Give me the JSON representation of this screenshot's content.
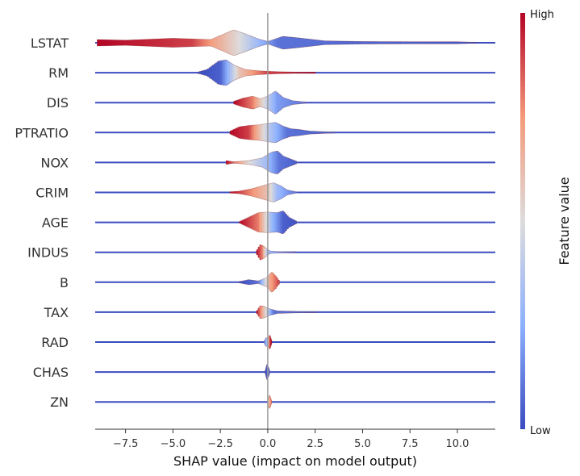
{
  "chart_data": {
    "type": "violin",
    "title": "",
    "xlabel": "SHAP value (impact on model output)",
    "xlim": [
      -9.1,
      12.0
    ],
    "xticks": [
      -7.5,
      -5.0,
      -2.5,
      0.0,
      2.5,
      5.0,
      7.5,
      10.0
    ],
    "xtick_labels": [
      "−7.5",
      "−5.0",
      "−2.5",
      "0.0",
      "2.5",
      "5.0",
      "7.5",
      "10.0"
    ],
    "colorbar": {
      "label": "Feature value",
      "high_label": "High",
      "low_label": "Low",
      "colors": [
        "#3b4cc0",
        "#8db0fe",
        "#dddcdc",
        "#f49a7b",
        "#b40426"
      ]
    },
    "features": [
      {
        "name": "LSTAT",
        "mode_x": -1.5,
        "span": [
          -9.0,
          11.0
        ],
        "density": [
          [
            -9.0,
            0.25
          ],
          [
            -7.5,
            0.2
          ],
          [
            -5.0,
            0.35
          ],
          [
            -3.0,
            0.25
          ],
          [
            -1.8,
            1.0
          ],
          [
            -1.2,
            0.7
          ],
          [
            -0.5,
            0.3
          ],
          [
            0.0,
            0.1
          ],
          [
            0.8,
            0.5
          ],
          [
            1.5,
            0.4
          ],
          [
            3.0,
            0.15
          ],
          [
            5.0,
            0.1
          ],
          [
            8.0,
            0.08
          ],
          [
            10.0,
            0.08
          ],
          [
            11.0,
            0.04
          ]
        ],
        "high_to_low": [
          [
            -9.0,
            1.0
          ],
          [
            -4.0,
            0.9
          ],
          [
            -1.5,
            0.5
          ],
          [
            0.5,
            0.1
          ],
          [
            11.0,
            0.02
          ]
        ]
      },
      {
        "name": "RM",
        "mode_x": -2.3,
        "span": [
          -3.7,
          2.5
        ],
        "density": [
          [
            -3.7,
            0.05
          ],
          [
            -3.2,
            0.25
          ],
          [
            -2.6,
            0.9
          ],
          [
            -2.2,
            1.0
          ],
          [
            -1.8,
            0.6
          ],
          [
            -1.2,
            0.25
          ],
          [
            -0.5,
            0.15
          ],
          [
            0.5,
            0.08
          ],
          [
            1.5,
            0.05
          ],
          [
            2.5,
            0.02
          ]
        ],
        "high_to_low": [
          [
            -3.7,
            0.0
          ],
          [
            -2.5,
            0.05
          ],
          [
            -1.5,
            0.6
          ],
          [
            0.0,
            0.9
          ],
          [
            2.5,
            1.0
          ]
        ]
      },
      {
        "name": "DIS",
        "mode_x": 0.3,
        "span": [
          -1.8,
          2.0
        ],
        "density": [
          [
            -1.8,
            0.1
          ],
          [
            -1.3,
            0.35
          ],
          [
            -0.8,
            0.5
          ],
          [
            -0.4,
            0.3
          ],
          [
            0.0,
            0.5
          ],
          [
            0.4,
            0.9
          ],
          [
            0.8,
            0.4
          ],
          [
            1.3,
            0.15
          ],
          [
            2.0,
            0.05
          ]
        ],
        "high_to_low": [
          [
            -1.8,
            1.0
          ],
          [
            -0.8,
            0.8
          ],
          [
            0.0,
            0.4
          ],
          [
            0.5,
            0.2
          ],
          [
            2.0,
            0.1
          ]
        ]
      },
      {
        "name": "PTRATIO",
        "mode_x": 0.2,
        "span": [
          -2.0,
          3.5
        ],
        "density": [
          [
            -2.0,
            0.1
          ],
          [
            -1.5,
            0.45
          ],
          [
            -1.0,
            0.55
          ],
          [
            -0.5,
            0.6
          ],
          [
            0.0,
            0.7
          ],
          [
            0.4,
            0.8
          ],
          [
            0.8,
            0.5
          ],
          [
            1.2,
            0.3
          ],
          [
            1.6,
            0.25
          ],
          [
            2.2,
            0.12
          ],
          [
            3.5,
            0.03
          ]
        ],
        "high_to_low": [
          [
            -2.0,
            1.0
          ],
          [
            -1.0,
            0.9
          ],
          [
            0.0,
            0.4
          ],
          [
            1.0,
            0.1
          ],
          [
            3.5,
            0.05
          ]
        ]
      },
      {
        "name": "NOX",
        "mode_x": 0.3,
        "span": [
          -2.2,
          1.5
        ],
        "density": [
          [
            -2.2,
            0.15
          ],
          [
            -1.8,
            0.05
          ],
          [
            -1.0,
            0.15
          ],
          [
            -0.3,
            0.35
          ],
          [
            0.2,
            0.8
          ],
          [
            0.5,
            0.9
          ],
          [
            0.8,
            0.5
          ],
          [
            1.5,
            0.1
          ]
        ],
        "high_to_low": [
          [
            -2.2,
            1.0
          ],
          [
            -1.0,
            0.5
          ],
          [
            0.0,
            0.3
          ],
          [
            0.6,
            0.1
          ],
          [
            1.5,
            0.05
          ]
        ]
      },
      {
        "name": "CRIM",
        "mode_x": 0.3,
        "span": [
          -2.0,
          1.5
        ],
        "density": [
          [
            -2.0,
            0.05
          ],
          [
            -1.5,
            0.1
          ],
          [
            -0.8,
            0.3
          ],
          [
            -0.2,
            0.55
          ],
          [
            0.3,
            0.75
          ],
          [
            0.7,
            0.5
          ],
          [
            1.0,
            0.2
          ],
          [
            1.5,
            0.05
          ]
        ],
        "high_to_low": [
          [
            -2.0,
            1.0
          ],
          [
            -1.0,
            0.8
          ],
          [
            0.0,
            0.6
          ],
          [
            0.5,
            0.3
          ],
          [
            1.5,
            0.1
          ]
        ]
      },
      {
        "name": "AGE",
        "mode_x": 0.7,
        "span": [
          -1.5,
          1.5
        ],
        "density": [
          [
            -1.5,
            0.05
          ],
          [
            -1.0,
            0.4
          ],
          [
            -0.5,
            0.75
          ],
          [
            0.0,
            0.8
          ],
          [
            0.5,
            0.75
          ],
          [
            0.8,
            0.9
          ],
          [
            1.1,
            0.4
          ],
          [
            1.5,
            0.1
          ]
        ],
        "high_to_low": [
          [
            -1.5,
            1.0
          ],
          [
            -0.5,
            0.8
          ],
          [
            0.2,
            0.3
          ],
          [
            0.8,
            0.05
          ],
          [
            1.5,
            0.02
          ]
        ]
      },
      {
        "name": "INDUS",
        "mode_x": -0.35,
        "span": [
          -0.6,
          1.5
        ],
        "density": [
          [
            -0.6,
            0.1
          ],
          [
            -0.4,
            0.6
          ],
          [
            -0.2,
            0.45
          ],
          [
            0.1,
            0.1
          ],
          [
            0.6,
            0.05
          ],
          [
            1.5,
            0.02
          ]
        ],
        "high_to_low": [
          [
            -0.6,
            1.0
          ],
          [
            -0.3,
            0.8
          ],
          [
            0.0,
            0.3
          ],
          [
            1.5,
            0.05
          ]
        ]
      },
      {
        "name": "B",
        "mode_x": 0.2,
        "span": [
          -1.5,
          0.6
        ],
        "density": [
          [
            -1.5,
            0.05
          ],
          [
            -1.0,
            0.2
          ],
          [
            -0.5,
            0.1
          ],
          [
            0.0,
            0.4
          ],
          [
            0.2,
            0.8
          ],
          [
            0.4,
            0.5
          ],
          [
            0.6,
            0.1
          ]
        ],
        "high_to_low": [
          [
            -1.5,
            0.0
          ],
          [
            -0.5,
            0.1
          ],
          [
            0.1,
            0.7
          ],
          [
            0.6,
            0.9
          ]
        ]
      },
      {
        "name": "TAX",
        "mode_x": -0.3,
        "span": [
          -0.6,
          2.6
        ],
        "density": [
          [
            -0.6,
            0.05
          ],
          [
            -0.4,
            0.5
          ],
          [
            -0.2,
            0.45
          ],
          [
            0.0,
            0.3
          ],
          [
            0.5,
            0.1
          ],
          [
            1.5,
            0.06
          ],
          [
            2.6,
            0.02
          ]
        ],
        "high_to_low": [
          [
            -0.6,
            1.0
          ],
          [
            -0.2,
            0.6
          ],
          [
            0.3,
            0.1
          ],
          [
            2.6,
            0.05
          ]
        ]
      },
      {
        "name": "RAD",
        "mode_x": 0.0,
        "span": [
          -0.2,
          0.2
        ],
        "density": [
          [
            -0.2,
            0.05
          ],
          [
            -0.1,
            0.35
          ],
          [
            0.0,
            0.25
          ],
          [
            0.1,
            0.55
          ],
          [
            0.2,
            0.1
          ]
        ],
        "high_to_low": [
          [
            -0.2,
            0.1
          ],
          [
            0.0,
            0.4
          ],
          [
            0.1,
            0.9
          ],
          [
            0.2,
            1.0
          ]
        ]
      },
      {
        "name": "CHAS",
        "mode_x": -0.05,
        "span": [
          -0.15,
          0.1
        ],
        "density": [
          [
            -0.15,
            0.05
          ],
          [
            -0.05,
            0.6
          ],
          [
            0.05,
            0.3
          ],
          [
            0.1,
            0.05
          ]
        ],
        "high_to_low": [
          [
            -0.15,
            0.0
          ],
          [
            0.1,
            0.1
          ]
        ]
      },
      {
        "name": "ZN",
        "mode_x": 0.1,
        "span": [
          0.0,
          0.2
        ],
        "density": [
          [
            0.0,
            0.05
          ],
          [
            0.05,
            0.45
          ],
          [
            0.1,
            0.5
          ],
          [
            0.15,
            0.3
          ],
          [
            0.2,
            0.05
          ]
        ],
        "high_to_low": [
          [
            0.0,
            0.5
          ],
          [
            0.1,
            0.7
          ],
          [
            0.2,
            0.8
          ]
        ]
      }
    ]
  }
}
